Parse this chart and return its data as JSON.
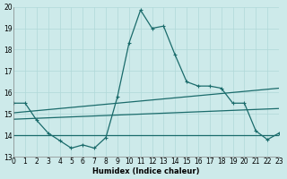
{
  "background_color": "#cdeaea",
  "grid_color": "#b0d8d8",
  "line_color": "#1a6b6b",
  "xlabel": "Humidex (Indice chaleur)",
  "xlim": [
    0,
    23
  ],
  "ylim": [
    13,
    20
  ],
  "yticks": [
    13,
    14,
    15,
    16,
    17,
    18,
    19,
    20
  ],
  "xtick_labels": [
    "0",
    "1",
    "2",
    "3",
    "4",
    "5",
    "6",
    "7",
    "8",
    "9",
    "10",
    "11",
    "12",
    "13",
    "14",
    "15",
    "16",
    "17",
    "18",
    "19",
    "20",
    "21",
    "22",
    "23"
  ],
  "curve1_x": [
    0,
    1,
    2,
    3,
    4,
    5,
    6,
    7,
    8,
    9,
    10,
    11,
    12,
    13,
    14,
    15,
    16,
    17,
    18,
    19,
    20,
    21,
    22,
    23
  ],
  "curve1_y": [
    15.5,
    15.5,
    14.7,
    14.1,
    13.75,
    13.4,
    13.55,
    13.4,
    13.9,
    15.8,
    18.3,
    19.85,
    19.0,
    19.1,
    17.75,
    16.5,
    16.3,
    16.3,
    16.2,
    15.5,
    15.5,
    14.2,
    13.8,
    14.1
  ],
  "line1_x": [
    0,
    23
  ],
  "line1_y": [
    14.0,
    14.0
  ],
  "line2_x": [
    0,
    23
  ],
  "line2_y": [
    14.75,
    15.25
  ],
  "line3_x": [
    0,
    23
  ],
  "line3_y": [
    15.05,
    16.2
  ]
}
